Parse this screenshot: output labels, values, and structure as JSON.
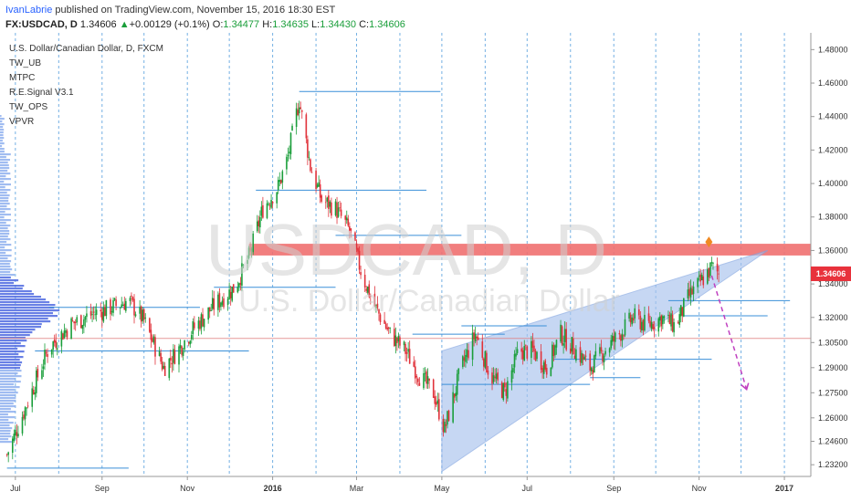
{
  "header": {
    "author": "IvanLabrie",
    "published_text": " published on TradingView.com, November 15, 2016 18:30 EST",
    "symbol": "FX:USDCAD, D",
    "last": "1.34606",
    "change_arrow": "▲",
    "change": "+0.00129 (+0.1%)",
    "open_label": "O:",
    "open": "1.34477",
    "high_label": "H:",
    "high": "1.34635",
    "low_label": "L:",
    "low": "1.34430",
    "close_label": "C:",
    "close": "1.34606"
  },
  "legend": {
    "title": "U.S. Dollar/Canadian Dollar, D, FXCM",
    "indicators": [
      "TW_UB",
      "MTPC",
      "R.E.Signal V3.1",
      "TW_OPS",
      "VPVR"
    ]
  },
  "watermark": {
    "symbol": "USDCAD, D",
    "name": "U.S. Dollar/Canadian Dollar"
  },
  "colors": {
    "up": "#1a9e3a",
    "down": "#e0323a",
    "resistance_zone": "#f07070",
    "wedge_fill": "#a9c3ee",
    "volume_profile": "#6e84e8",
    "price_label_bg": "#e8323c",
    "level_line": "#3a8fd8",
    "projection": "#c040c0"
  },
  "chart_data": {
    "type": "candlestick",
    "title": "U.S. Dollar/Canadian Dollar, D, FXCM",
    "yaxis_ticks": [
      "1.48000",
      "1.46000",
      "1.44000",
      "1.42000",
      "1.40000",
      "1.38000",
      "1.36000",
      "1.34000",
      "1.32000",
      "1.30500",
      "1.29000",
      "1.27500",
      "1.26000",
      "1.24600",
      "1.23200"
    ],
    "xaxis_ticks": [
      "Jul",
      "Sep",
      "Nov",
      "2016",
      "Mar",
      "May",
      "Jul",
      "Sep",
      "Nov",
      "2017"
    ],
    "ylim": [
      1.225,
      1.49
    ],
    "last_price": "1.34606",
    "resistance_zone": [
      1.357,
      1.364
    ],
    "horizontal_levels": [
      {
        "y": 1.455,
        "from": "2016-01-20",
        "to": "2016-04-30"
      },
      {
        "y": 1.396,
        "from": "2015-12-20",
        "to": "2016-04-20"
      },
      {
        "y": 1.369,
        "from": "2016-02-15",
        "to": "2016-05-15"
      },
      {
        "y": 1.338,
        "from": "2015-11-20",
        "to": "2016-02-15"
      },
      {
        "y": 1.33,
        "from": "2016-10-10",
        "to": "2017-01-05"
      },
      {
        "y": 1.326,
        "from": "2015-07-25",
        "to": "2015-11-10"
      },
      {
        "y": 1.321,
        "from": "2016-10-20",
        "to": "2016-12-20"
      },
      {
        "y": 1.315,
        "from": "2016-05-15",
        "to": "2016-07-15"
      },
      {
        "y": 1.31,
        "from": "2016-04-10",
        "to": "2016-06-15"
      },
      {
        "y": 1.3,
        "from": "2015-07-15",
        "to": "2015-12-15"
      },
      {
        "y": 1.295,
        "from": "2016-07-20",
        "to": "2016-11-10"
      },
      {
        "y": 1.284,
        "from": "2016-08-15",
        "to": "2016-09-20"
      },
      {
        "y": 1.28,
        "from": "2016-05-01",
        "to": "2016-08-15"
      },
      {
        "y": 1.23,
        "from": "2015-06-25",
        "to": "2015-09-20"
      }
    ],
    "wedge": {
      "upper": [
        [
          "2016-05-01",
          1.3
        ],
        [
          "2016-12-20",
          1.36
        ]
      ],
      "lower": [
        [
          "2016-05-01",
          1.228
        ],
        [
          "2016-12-20",
          1.36
        ]
      ]
    },
    "projection": [
      [
        "2016-11-10",
        1.345
      ],
      [
        "2016-12-05",
        1.277
      ]
    ],
    "price_path": [
      [
        "2015-06-25",
        1.238
      ],
      [
        "2015-07-10",
        1.27
      ],
      [
        "2015-07-25",
        1.302
      ],
      [
        "2015-08-10",
        1.316
      ],
      [
        "2015-08-25",
        1.322
      ],
      [
        "2015-09-05",
        1.325
      ],
      [
        "2015-09-20",
        1.33
      ],
      [
        "2015-10-01",
        1.318
      ],
      [
        "2015-10-15",
        1.29
      ],
      [
        "2015-10-25",
        1.3
      ],
      [
        "2015-11-05",
        1.313
      ],
      [
        "2015-11-20",
        1.327
      ],
      [
        "2015-12-05",
        1.338
      ],
      [
        "2015-12-15",
        1.356
      ],
      [
        "2015-12-25",
        1.385
      ],
      [
        "2016-01-05",
        1.398
      ],
      [
        "2016-01-12",
        1.416
      ],
      [
        "2016-01-20",
        1.45
      ],
      [
        "2016-01-28",
        1.41
      ],
      [
        "2016-02-05",
        1.39
      ],
      [
        "2016-02-15",
        1.385
      ],
      [
        "2016-02-25",
        1.372
      ],
      [
        "2016-03-05",
        1.345
      ],
      [
        "2016-03-15",
        1.325
      ],
      [
        "2016-03-25",
        1.31
      ],
      [
        "2016-04-05",
        1.3
      ],
      [
        "2016-04-15",
        1.285
      ],
      [
        "2016-04-25",
        1.275
      ],
      [
        "2016-05-03",
        1.253
      ],
      [
        "2016-05-15",
        1.29
      ],
      [
        "2016-05-25",
        1.31
      ],
      [
        "2016-06-05",
        1.285
      ],
      [
        "2016-06-15",
        1.275
      ],
      [
        "2016-06-25",
        1.3
      ],
      [
        "2016-07-05",
        1.3
      ],
      [
        "2016-07-15",
        1.29
      ],
      [
        "2016-07-25",
        1.31
      ],
      [
        "2016-08-05",
        1.3
      ],
      [
        "2016-08-15",
        1.29
      ],
      [
        "2016-08-25",
        1.3
      ],
      [
        "2016-09-05",
        1.31
      ],
      [
        "2016-09-15",
        1.32
      ],
      [
        "2016-09-25",
        1.315
      ],
      [
        "2016-10-05",
        1.32
      ],
      [
        "2016-10-15",
        1.315
      ],
      [
        "2016-10-25",
        1.333
      ],
      [
        "2016-11-01",
        1.34
      ],
      [
        "2016-11-10",
        1.35
      ],
      [
        "2016-11-15",
        1.346
      ]
    ]
  }
}
